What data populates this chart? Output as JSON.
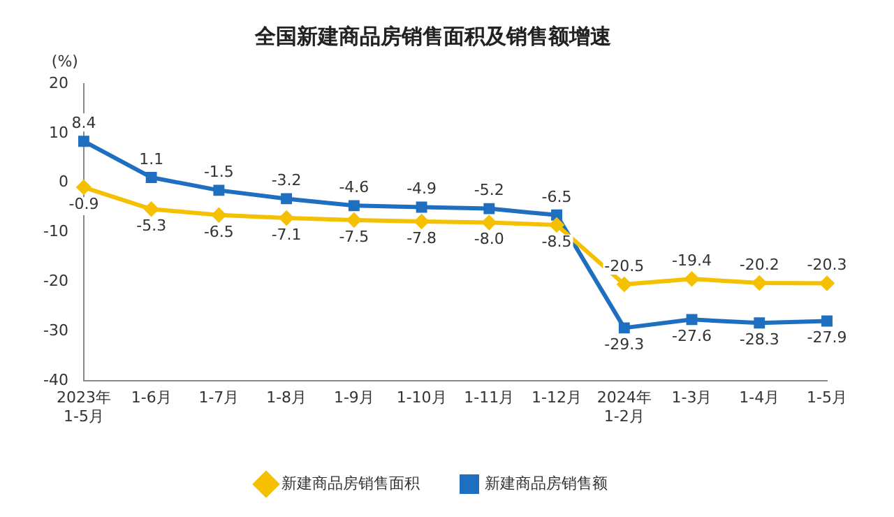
{
  "chart_data": {
    "type": "line",
    "title": "全国新建商品房销售面积及销售额增速",
    "ylabel": "(%)",
    "categories": [
      "2023年\n1-5月",
      "1-6月",
      "1-7月",
      "1-8月",
      "1-9月",
      "1-10月",
      "1-11月",
      "1-12月",
      "2024年\n1-2月",
      "1-3月",
      "1-4月",
      "1-5月"
    ],
    "series": [
      {
        "name": "新建商品房销售面积",
        "color": "#f5c000",
        "marker": "diamond",
        "values": [
          -0.9,
          -5.3,
          -6.5,
          -7.1,
          -7.5,
          -7.8,
          -8.0,
          -8.5,
          -20.5,
          -19.4,
          -20.2,
          -20.3
        ],
        "value_labels": [
          "-0.9",
          "-5.3",
          "-6.5",
          "-7.1",
          "-7.5",
          "-7.8",
          "-8.0",
          "-8.5",
          "-20.5",
          "-19.4",
          "-20.2",
          "-20.3"
        ]
      },
      {
        "name": "新建商品房销售额",
        "color": "#1f6fc0",
        "marker": "square",
        "values": [
          8.4,
          1.1,
          -1.5,
          -3.2,
          -4.6,
          -4.9,
          -5.2,
          -6.5,
          -29.3,
          -27.6,
          -28.3,
          -27.9
        ],
        "value_labels": [
          "8.4",
          "1.1",
          "-1.5",
          "-3.2",
          "-4.6",
          "-4.9",
          "-5.2",
          "-6.5",
          "-29.3",
          "-27.6",
          "-28.3",
          "-27.9"
        ]
      }
    ],
    "ylim": [
      -40,
      20
    ],
    "yticks": [
      -40,
      -30,
      -20,
      -10,
      0,
      10,
      20
    ],
    "grid": false,
    "legend": "bottom",
    "line_style": "solid"
  }
}
